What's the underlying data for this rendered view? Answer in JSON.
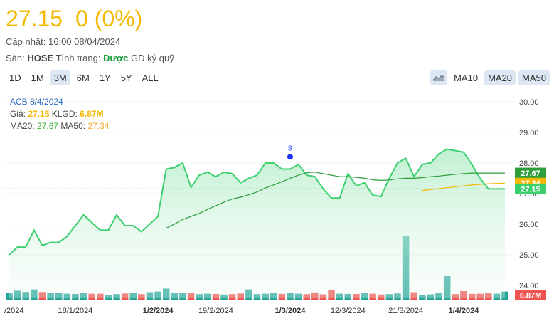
{
  "header": {
    "price": "27.15",
    "change": "0",
    "change_pct": "(0%)",
    "update_label": "Cập nhật:",
    "update_time": "16:00 08/04/2024",
    "exchange_label": "Sàn:",
    "exchange": "HOSE",
    "status_label": "Tình trạng:",
    "status_value": "Được",
    "status_rest": "GD ký quỹ"
  },
  "ranges": [
    "1D",
    "1M",
    "3M",
    "6M",
    "1Y",
    "5Y",
    "ALL"
  ],
  "active_range": "3M",
  "ma_toggles": {
    "area_icon": "area-chart-icon",
    "ma10": "MA10",
    "ma20": "MA20",
    "ma50": "MA50"
  },
  "legend": {
    "title": "ACB 8/4/2024",
    "price_label": "Giá:",
    "price": "27.15",
    "volume_label": "KLGD:",
    "volume": "6.87M",
    "ma20_label": "MA20:",
    "ma20": "27.67",
    "ma50_label": "MA50:",
    "ma50": "27.34"
  },
  "colors": {
    "price_line": "#3ccf6e",
    "area_fill": "#d6f5e1",
    "ma20": "#2e9e3c",
    "ma50": "#f5b800",
    "volume": "#26a69a",
    "volume_down": "#ef5350",
    "price_text": "#f5b800"
  },
  "chart_data": {
    "type": "line",
    "x": [
      "2024-01-08",
      "2024-01-09",
      "2024-01-10",
      "2024-01-11",
      "2024-01-12",
      "2024-01-15",
      "2024-01-16",
      "2024-01-17",
      "2024-01-18",
      "2024-01-19",
      "2024-01-22",
      "2024-01-23",
      "2024-01-24",
      "2024-01-25",
      "2024-01-26",
      "2024-01-29",
      "2024-01-30",
      "2024-01-31",
      "2024-02-01",
      "2024-02-02",
      "2024-02-05",
      "2024-02-06",
      "2024-02-07",
      "2024-02-15",
      "2024-02-16",
      "2024-02-19",
      "2024-02-20",
      "2024-02-21",
      "2024-02-22",
      "2024-02-23",
      "2024-02-26",
      "2024-02-27",
      "2024-02-28",
      "2024-02-29",
      "2024-03-01",
      "2024-03-04",
      "2024-03-05",
      "2024-03-06",
      "2024-03-07",
      "2024-03-08",
      "2024-03-11",
      "2024-03-12",
      "2024-03-13",
      "2024-03-14",
      "2024-03-15",
      "2024-03-18",
      "2024-03-19",
      "2024-03-20",
      "2024-03-21",
      "2024-03-22",
      "2024-03-25",
      "2024-03-26",
      "2024-03-27",
      "2024-03-28",
      "2024-03-29",
      "2024-04-01",
      "2024-04-02",
      "2024-04-03",
      "2024-04-04",
      "2024-04-05",
      "2024-04-08"
    ],
    "x_tick_labels": [
      "/2024",
      "18/1/2024",
      "1/2/2024",
      "19/2/2024",
      "1/3/2024",
      "12/3/2024",
      "21/3/2024",
      "1/4/2024"
    ],
    "x_tick_dates": [
      "2024-01-08",
      "2024-01-18",
      "2024-02-01",
      "2024-02-19",
      "2024-03-01",
      "2024-03-12",
      "2024-03-21",
      "2024-04-01"
    ],
    "bold_ticks": [
      "1/2/2024",
      "1/3/2024",
      "1/4/2024"
    ],
    "series": [
      {
        "key": "price",
        "values": [
          25.0,
          25.25,
          25.25,
          25.8,
          25.3,
          25.4,
          25.4,
          25.6,
          25.95,
          26.3,
          26.05,
          25.8,
          25.8,
          26.3,
          25.95,
          25.95,
          25.75,
          26.0,
          26.25,
          27.8,
          27.85,
          28.0,
          27.2,
          27.6,
          27.7,
          27.55,
          27.7,
          27.65,
          27.35,
          27.5,
          27.6,
          28.0,
          28.0,
          27.8,
          27.8,
          27.95,
          27.6,
          27.55,
          27.15,
          26.85,
          26.85,
          27.65,
          27.25,
          27.35,
          26.95,
          26.9,
          27.5,
          28.0,
          28.15,
          27.55,
          27.95,
          28.0,
          28.3,
          28.45,
          28.4,
          28.35,
          27.95,
          27.5,
          27.15,
          27.15,
          27.15
        ]
      },
      {
        "key": "ma20",
        "values": [
          null,
          null,
          null,
          null,
          null,
          null,
          null,
          null,
          null,
          null,
          null,
          null,
          null,
          null,
          null,
          null,
          null,
          null,
          null,
          25.87,
          26.0,
          26.15,
          26.25,
          26.35,
          26.48,
          26.6,
          26.72,
          26.82,
          26.88,
          26.96,
          27.05,
          27.18,
          27.28,
          27.38,
          27.5,
          27.6,
          27.68,
          27.7,
          27.65,
          27.6,
          27.55,
          27.55,
          27.53,
          27.5,
          27.45,
          27.43,
          27.44,
          27.48,
          27.5,
          27.5,
          27.52,
          27.55,
          27.57,
          27.6,
          27.63,
          27.65,
          27.67,
          27.67,
          27.67,
          27.67,
          27.67
        ]
      },
      {
        "key": "ma50",
        "values": [
          null,
          null,
          null,
          null,
          null,
          null,
          null,
          null,
          null,
          null,
          null,
          null,
          null,
          null,
          null,
          null,
          null,
          null,
          null,
          null,
          null,
          null,
          null,
          null,
          null,
          null,
          null,
          null,
          null,
          null,
          null,
          null,
          null,
          null,
          null,
          null,
          null,
          null,
          null,
          null,
          null,
          null,
          null,
          null,
          null,
          null,
          null,
          null,
          null,
          null,
          27.1,
          27.13,
          27.16,
          27.19,
          27.22,
          27.25,
          27.28,
          27.3,
          27.32,
          27.33,
          27.34
        ]
      }
    ],
    "volume": {
      "values": [
        0.33,
        0.42,
        0.36,
        0.48,
        0.36,
        0.3,
        0.3,
        0.28,
        0.27,
        0.3,
        0.28,
        0.28,
        0.2,
        0.26,
        0.29,
        0.32,
        0.26,
        0.35,
        0.38,
        0.52,
        0.33,
        0.32,
        0.31,
        0.26,
        0.28,
        0.27,
        0.24,
        0.26,
        0.29,
        0.48,
        0.26,
        0.28,
        0.32,
        0.27,
        0.3,
        0.28,
        0.26,
        0.34,
        0.25,
        0.45,
        0.28,
        0.27,
        0.27,
        0.3,
        0.28,
        0.24,
        0.26,
        0.29,
        3.0,
        0.35,
        0.2,
        0.25,
        0.3,
        1.1,
        0.26,
        0.4,
        0.27,
        0.28,
        0.3,
        0.28,
        0.38
      ],
      "last_label": "6.87M"
    },
    "signal": {
      "date": "2024-03-01",
      "value": 28.2,
      "label": "S"
    },
    "y_ticks": [
      24.0,
      25.0,
      26.0,
      27.0,
      28.0,
      29.0,
      30.0
    ],
    "y_tick_labels": [
      "24.00",
      "25.00",
      "26.00",
      "27.00",
      "28.00",
      "29.00",
      "30.00"
    ],
    "y_badges": [
      {
        "label": "27.67",
        "value": 27.67,
        "color": "#2e9e3c"
      },
      {
        "label": "27.34",
        "value": 27.34,
        "color": "#f5b800"
      },
      {
        "label": "27.15",
        "value": 27.15,
        "color": "#3ccf6e"
      }
    ],
    "dotted_line_value": 27.15,
    "ylim": [
      23.6,
      30.3
    ]
  }
}
